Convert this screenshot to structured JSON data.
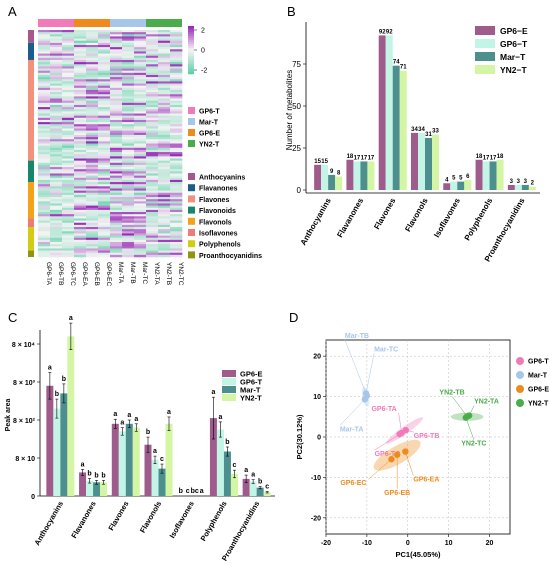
{
  "panels": {
    "A": {
      "letter": "A"
    },
    "B": {
      "letter": "B"
    },
    "C": {
      "letter": "C"
    },
    "D": {
      "letter": "D"
    }
  },
  "chart_data": [
    {
      "id": "A",
      "type": "heatmap",
      "columns": [
        "GP6-TA",
        "GP6-TB",
        "GP6-TC",
        "GP6-EA",
        "GP6-EB",
        "GP6-EC",
        "Mar-TA",
        "Mar-TB",
        "Mar-TC",
        "YN2-TA",
        "YN2-TB",
        "YN2-TC"
      ],
      "column_groups": [
        {
          "name": "GP6-T",
          "color": "#f27ab9",
          "start": 0,
          "end": 2
        },
        {
          "name": "GP6-E",
          "color": "#ef8b1c",
          "start": 3,
          "end": 5
        },
        {
          "name": "Mar-T",
          "color": "#a7c7ea",
          "start": 6,
          "end": 8
        },
        {
          "name": "YN2-T",
          "color": "#4aac4a",
          "start": 9,
          "end": 11
        }
      ],
      "group_legend_order": [
        "GP6-T",
        "Mar-T",
        "GP6-E",
        "YN2-T"
      ],
      "row_classes": [
        {
          "name": "Anthocyanins",
          "color": "#a6588a",
          "rows": 6
        },
        {
          "name": "Flavanones",
          "color": "#1d5d8e",
          "rows": 8
        },
        {
          "name": "Flavones",
          "color": "#f3917d",
          "rows": 47
        },
        {
          "name": "Flavonoids",
          "color": "#16866f",
          "rows": 10
        },
        {
          "name": "Flavonols",
          "color": "#f4a318",
          "rows": 17
        },
        {
          "name": "Isoflavones",
          "color": "#f07b74",
          "rows": 4
        },
        {
          "name": "Polyphenols",
          "color": "#d2cc13",
          "rows": 11
        },
        {
          "name": "Proanthocyanidins",
          "color": "#92940e",
          "rows": 3
        }
      ],
      "scale": {
        "min": -2,
        "max": 2,
        "ticks": [
          "2",
          "0",
          "-2"
        ],
        "low_color": "#5fd1a9",
        "mid_color": "#f4f4f4",
        "high_color": "#9a2bb8"
      }
    },
    {
      "id": "B",
      "type": "bar",
      "ylabel": "Number of metabolites",
      "ylim": [
        0,
        100
      ],
      "yticks": [
        0,
        25,
        50,
        75
      ],
      "categories": [
        "Anthocyanins",
        "Flavanones",
        "Flavones",
        "Flavonols",
        "Isoflavones",
        "Polyphenols",
        "Proanthocyanidins"
      ],
      "series": [
        {
          "name": "GP6−E",
          "color": "#9e5b8b",
          "values": [
            15,
            18,
            92,
            34,
            4,
            18,
            3
          ]
        },
        {
          "name": "GP6−T",
          "color": "#c3f5e6",
          "values": [
            15,
            17,
            92,
            34,
            5,
            17,
            3
          ]
        },
        {
          "name": "Mar−T",
          "color": "#4d8e8e",
          "values": [
            9,
            17,
            74,
            31,
            5,
            17,
            3
          ]
        },
        {
          "name": "YN2−T",
          "color": "#d3f5a4",
          "values": [
            8,
            17,
            71,
            33,
            6,
            18,
            2
          ]
        }
      ],
      "legend": "top-right"
    },
    {
      "id": "C",
      "type": "bar",
      "ylabel": "Peak area",
      "ytick_labels": [
        "0",
        "8 × 10",
        "8 × 10²",
        "8 × 10³",
        "8 × 10⁴"
      ],
      "ytick_values": [
        0,
        1,
        2,
        3,
        4
      ],
      "ylim": [
        0,
        4.6
      ],
      "categories": [
        "Anthocyanins",
        "Flavanones",
        "Flavones",
        "Flavonols",
        "Isoflavones",
        "Polyphenols",
        "Proanthocyanidins"
      ],
      "series": [
        {
          "name": "GP6-E",
          "color": "#9e5b8b",
          "values": [
            2.9,
            0.62,
            1.9,
            1.35,
            0.0,
            2.05,
            0.45
          ],
          "errors": [
            0.35,
            0.08,
            0.12,
            0.2,
            0.0,
            0.55,
            0.1
          ],
          "letters": [
            "a",
            "a",
            "a",
            "b",
            "b",
            "a",
            "a"
          ]
        },
        {
          "name": "GP6-T",
          "color": "#c3f5e6",
          "values": [
            2.3,
            0.4,
            1.7,
            0.95,
            0.0,
            1.75,
            0.38
          ],
          "errors": [
            0.25,
            0.06,
            0.1,
            0.1,
            0.0,
            0.2,
            0.05
          ],
          "letters": [
            "b",
            "b",
            "a",
            "a",
            "c",
            "a",
            "a"
          ]
        },
        {
          "name": "Mar-T",
          "color": "#4d8e8e",
          "values": [
            2.7,
            0.36,
            1.9,
            0.72,
            0.0,
            1.17,
            0.22
          ],
          "errors": [
            0.25,
            0.05,
            0.1,
            0.12,
            0.0,
            0.12,
            0.03
          ],
          "letters": [
            "b",
            "b",
            "a",
            "c",
            "bc",
            "b",
            "b"
          ]
        },
        {
          "name": "YN2-T",
          "color": "#d3f5a4",
          "values": [
            4.2,
            0.36,
            1.8,
            1.9,
            0.0,
            0.58,
            0.1
          ],
          "errors": [
            0.35,
            0.05,
            0.1,
            0.18,
            0.0,
            0.1,
            0.02
          ],
          "letters": [
            "a",
            "b",
            "a",
            "a",
            "a",
            "c",
            "c"
          ]
        }
      ],
      "legend": "top-right"
    },
    {
      "id": "D",
      "type": "scatter",
      "xlabel": "PC1(45.05%)",
      "ylabel": "PC2(30.12%)",
      "xlim": [
        -20,
        25
      ],
      "ylim": [
        -24,
        24
      ],
      "xticks": [
        -20,
        -10,
        0,
        10,
        20
      ],
      "yticks": [
        -20,
        -10,
        0,
        10,
        20
      ],
      "grid": true,
      "groups": [
        {
          "name": "GP6-T",
          "color": "#f27ab9",
          "centroid": [
            -0.8,
            1.6
          ],
          "ellipse": [
            5.5,
            0.9,
            35
          ],
          "points": [
            {
              "label": "GP6-TA",
              "x": -1.5,
              "y": 1.0
            },
            {
              "label": "GP6-TB",
              "x": -0.5,
              "y": 1.7
            },
            {
              "label": "GP6-TC",
              "x": -2.0,
              "y": 0.7
            }
          ]
        },
        {
          "name": "Mar-T",
          "color": "#a7c7ea",
          "centroid": [
            -10.3,
            10.0
          ],
          "ellipse": [
            0.8,
            2.5,
            10
          ],
          "points": [
            {
              "label": "Mar-TA",
              "x": -10.5,
              "y": 9.3
            },
            {
              "label": "Mar-TB",
              "x": -10.0,
              "y": 10.2
            },
            {
              "label": "Mar-TC",
              "x": -10.2,
              "y": 10.8
            }
          ]
        },
        {
          "name": "GP6-E",
          "color": "#ef8b1c",
          "centroid": [
            -2.6,
            -4.5
          ],
          "ellipse": [
            6.5,
            2.2,
            30
          ],
          "points": [
            {
              "label": "GP6-EA",
              "x": -0.6,
              "y": -3.6
            },
            {
              "label": "GP6-EB",
              "x": -2.6,
              "y": -4.4
            },
            {
              "label": "GP6-EC",
              "x": -4.0,
              "y": -5.5
            }
          ]
        },
        {
          "name": "YN2-T",
          "color": "#4aac4a",
          "centroid": [
            14.5,
            5.0
          ],
          "ellipse": [
            4.0,
            1.0,
            0
          ],
          "points": [
            {
              "label": "YN2-TA",
              "x": 15.0,
              "y": 5.3
            },
            {
              "label": "YN2-TB",
              "x": 14.5,
              "y": 5.1
            },
            {
              "label": "YN2-TC",
              "x": 14.2,
              "y": 4.8
            }
          ]
        }
      ],
      "legend": "top-right"
    }
  ]
}
